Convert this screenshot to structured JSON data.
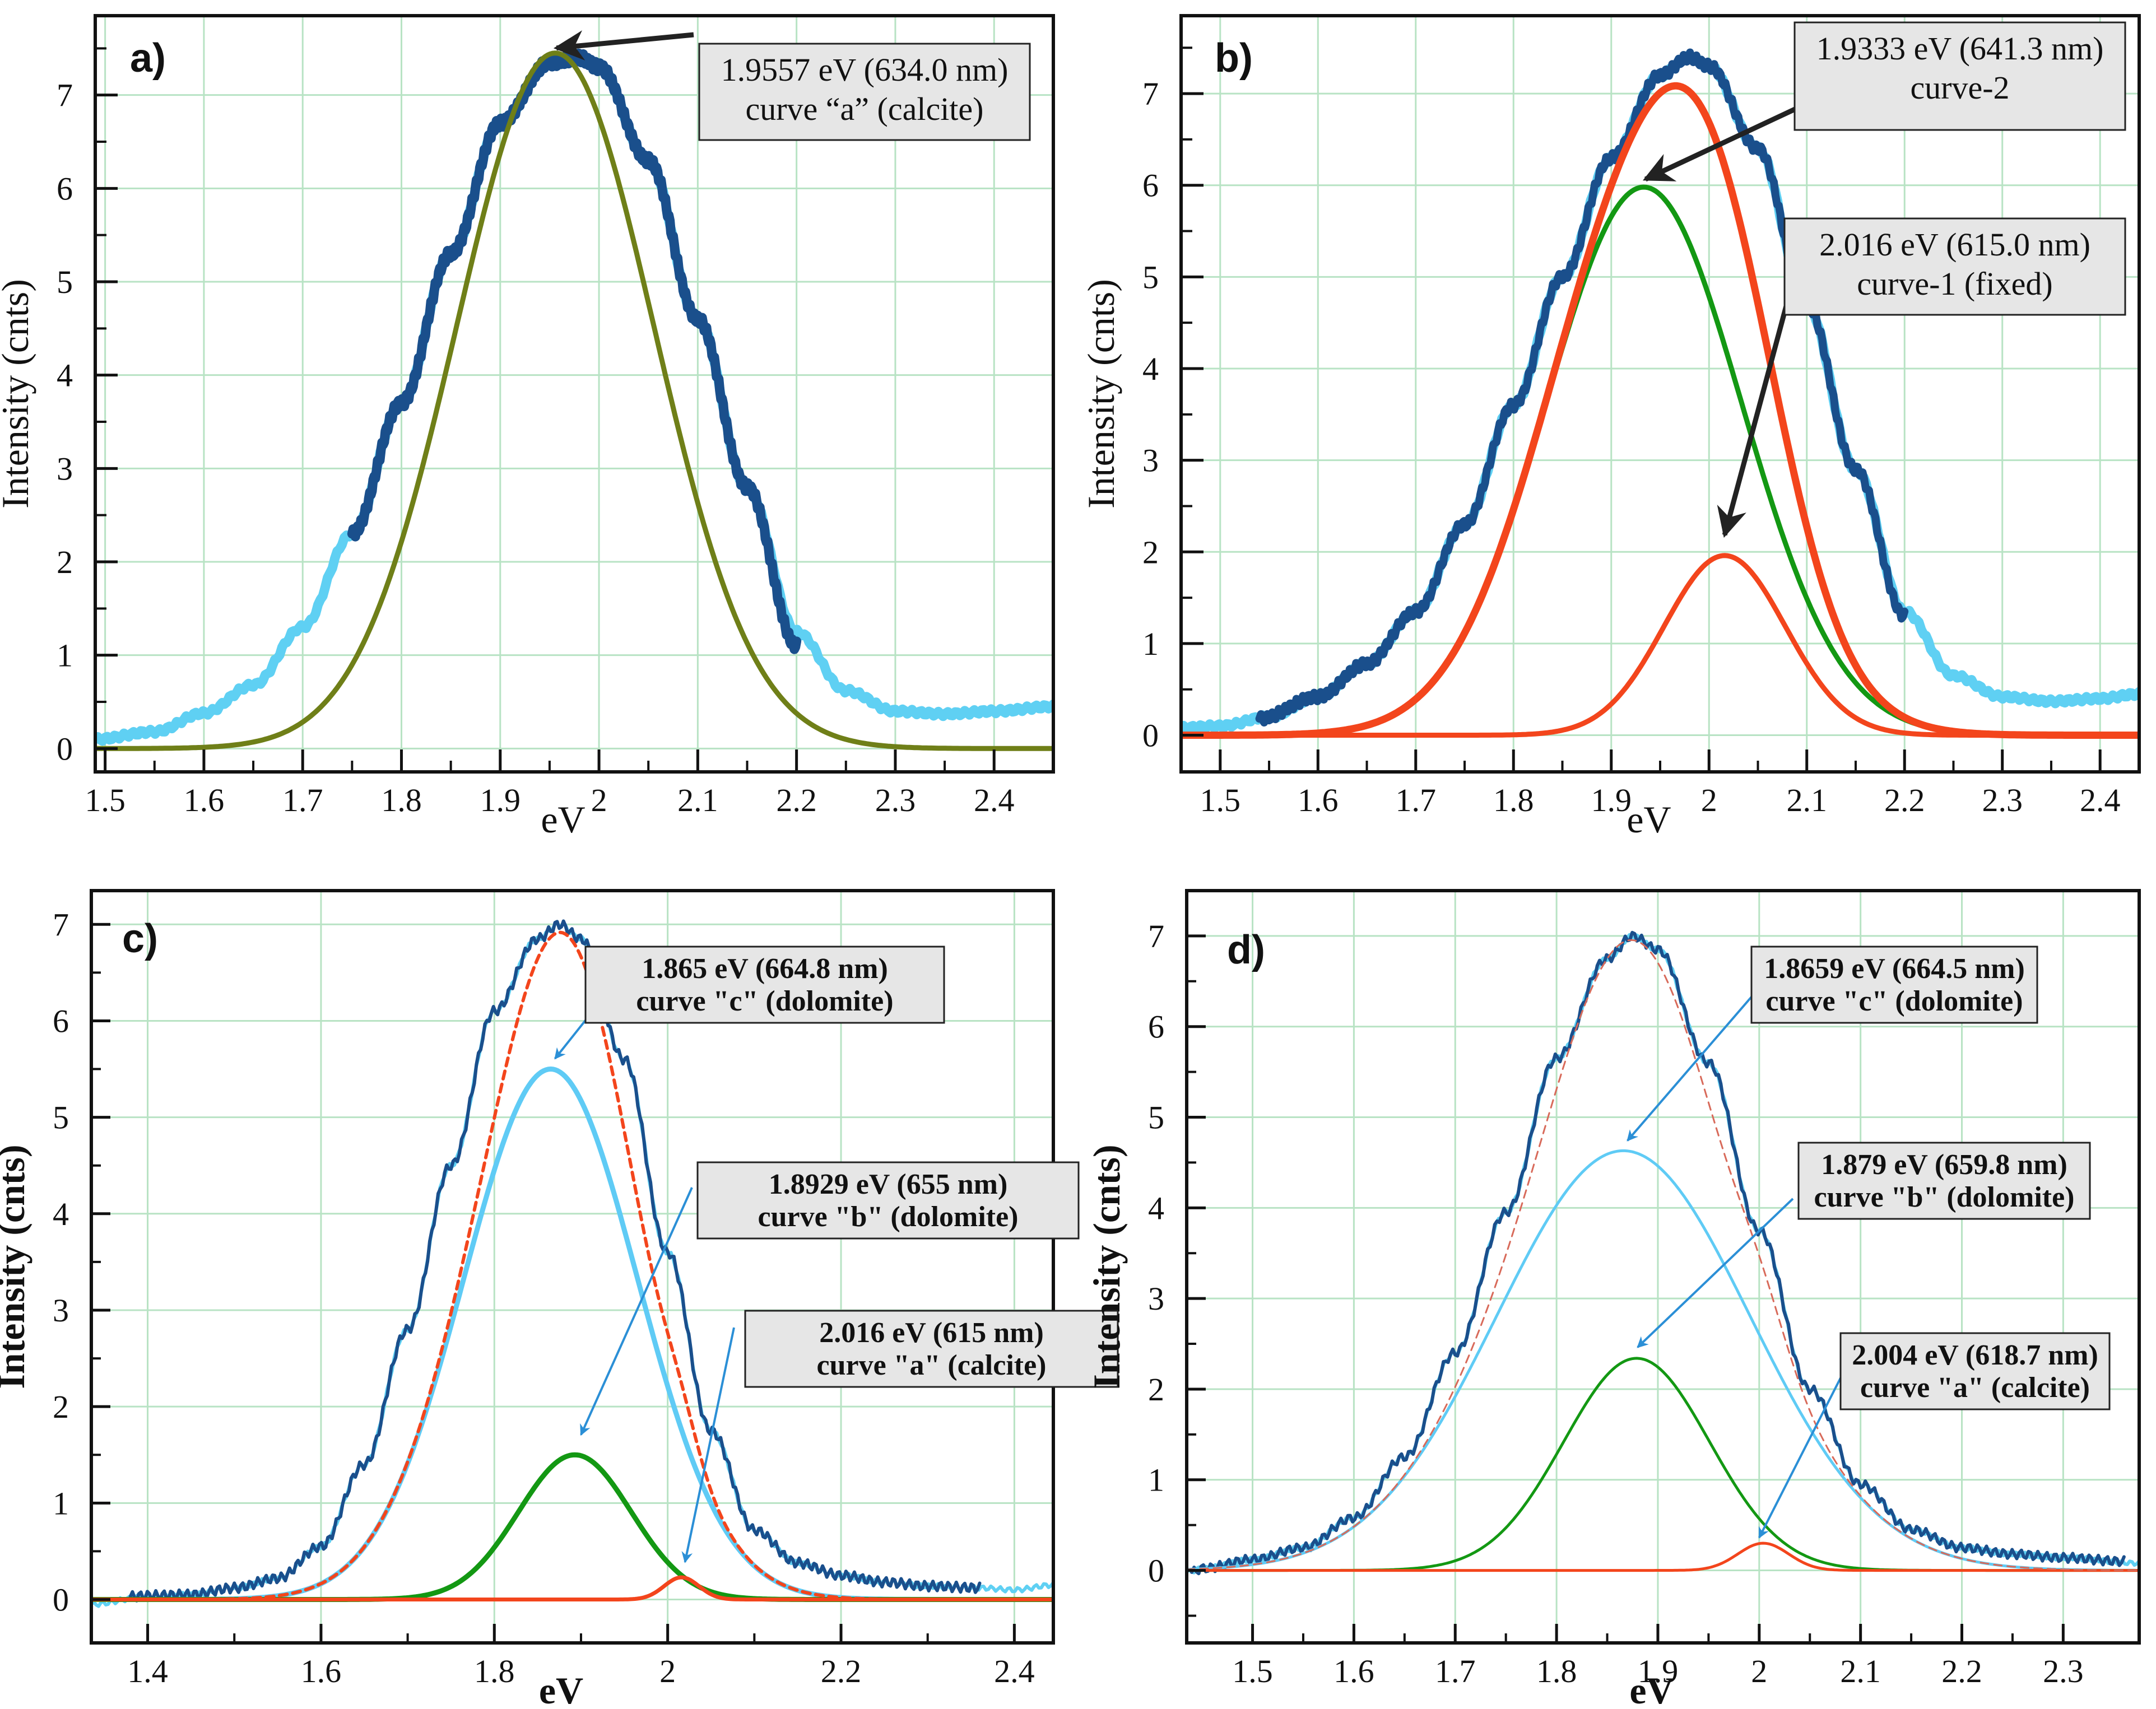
{
  "figure": {
    "colors": {
      "grid": "#b8e3c4",
      "axis": "#111111",
      "background": "#ffffff",
      "annotation_box": "#e6e6e6",
      "arrow_black": "#222222",
      "arrow_blue": "#2b8fd6"
    }
  },
  "chart_data": [
    {
      "panel": "a)",
      "type": "line",
      "xlabel": "eV",
      "ylabel": "Intensity (cnts)",
      "bold_labels": false,
      "xlim": [
        1.49,
        2.46
      ],
      "ylim": [
        -0.25,
        7.85
      ],
      "x_ticks": [
        1.5,
        1.6,
        1.7,
        1.8,
        1.9,
        2.0,
        2.1,
        2.2,
        2.3,
        2.4
      ],
      "x_tick_labels": [
        "1.5",
        "1.6",
        "1.7",
        "1.8",
        "1.9",
        "2",
        "2.1",
        "2.2",
        "2.3",
        "2.4"
      ],
      "y_ticks": [
        0,
        1,
        2,
        3,
        4,
        5,
        6,
        7
      ],
      "y_tick_labels": [
        "0",
        "1",
        "2",
        "3",
        "4",
        "5",
        "6",
        "7"
      ],
      "grid": true,
      "series": [
        {
          "kind": "spectrum",
          "role": "measured-full",
          "color": "#5fd0f3",
          "width": 17,
          "range": [
            1.49,
            2.46
          ],
          "x": [
            1.49,
            1.55,
            1.6,
            1.65,
            1.7,
            1.75,
            1.8,
            1.85,
            1.9,
            1.95,
            1.98,
            2.0,
            2.05,
            2.1,
            2.15,
            2.2,
            2.25,
            2.3,
            2.35,
            2.4,
            2.46
          ],
          "y": [
            0.1,
            0.18,
            0.38,
            0.68,
            1.3,
            2.3,
            3.7,
            5.3,
            6.7,
            7.35,
            7.4,
            7.3,
            6.3,
            4.6,
            2.8,
            1.25,
            0.62,
            0.4,
            0.37,
            0.4,
            0.45
          ]
        },
        {
          "kind": "spectrum",
          "role": "measured-fit-window",
          "color": "#1a4f8c",
          "width": 17,
          "range": [
            1.75,
            2.2
          ],
          "x": [
            1.75,
            1.8,
            1.85,
            1.9,
            1.95,
            1.98,
            2.0,
            2.05,
            2.1,
            2.15,
            2.2
          ],
          "y": [
            2.3,
            3.7,
            5.3,
            6.7,
            7.35,
            7.4,
            7.3,
            6.3,
            4.6,
            2.8,
            1.1
          ]
        },
        {
          "kind": "gauss",
          "role": "fit",
          "color": "#6f7f18",
          "width": 9,
          "center": 1.9557,
          "amplitude": 7.45,
          "sigma": 0.1,
          "range": [
            1.49,
            2.46
          ]
        }
      ],
      "annotations": [
        {
          "lines": [
            "1.9557 eV (634.0 nm)",
            "curve “a” (calcite)"
          ],
          "bold": false,
          "arrow_color": "#222222",
          "points_to": [
            1.957,
            7.42
          ]
        }
      ]
    },
    {
      "panel": "b)",
      "type": "line",
      "xlabel": "eV",
      "ylabel": "Intensity (cnts)",
      "bold_labels": false,
      "xlim": [
        1.46,
        2.44
      ],
      "ylim": [
        -0.4,
        7.85
      ],
      "x_ticks": [
        1.5,
        1.6,
        1.7,
        1.8,
        1.9,
        2.0,
        2.1,
        2.2,
        2.3,
        2.4
      ],
      "x_tick_labels": [
        "1.5",
        "1.6",
        "1.7",
        "1.8",
        "1.9",
        "2",
        "2.1",
        "2.2",
        "2.3",
        "2.4"
      ],
      "y_ticks": [
        0,
        1,
        2,
        3,
        4,
        5,
        6,
        7
      ],
      "y_tick_labels": [
        "0",
        "1",
        "2",
        "3",
        "4",
        "5",
        "6",
        "7"
      ],
      "grid": true,
      "series": [
        {
          "kind": "spectrum",
          "role": "measured-full",
          "color": "#5fd0f3",
          "width": 17,
          "range": [
            1.46,
            2.44
          ],
          "x": [
            1.46,
            1.5,
            1.55,
            1.6,
            1.65,
            1.7,
            1.75,
            1.8,
            1.85,
            1.9,
            1.95,
            1.98,
            2.0,
            2.05,
            2.1,
            2.15,
            2.2,
            2.25,
            2.3,
            2.35,
            2.4,
            2.44
          ],
          "y": [
            0.08,
            0.1,
            0.2,
            0.42,
            0.78,
            1.35,
            2.3,
            3.6,
            5.0,
            6.3,
            7.2,
            7.4,
            7.3,
            6.4,
            4.7,
            2.9,
            1.35,
            0.65,
            0.42,
            0.37,
            0.4,
            0.45
          ]
        },
        {
          "kind": "spectrum",
          "role": "measured-fit-window",
          "color": "#1a4f8c",
          "width": 14,
          "range": [
            1.54,
            2.2
          ],
          "x": [
            1.54,
            1.6,
            1.65,
            1.7,
            1.75,
            1.8,
            1.85,
            1.9,
            1.95,
            1.98,
            2.0,
            2.05,
            2.1,
            2.15,
            2.2
          ],
          "y": [
            0.18,
            0.42,
            0.78,
            1.35,
            2.3,
            3.6,
            5.0,
            6.3,
            7.2,
            7.4,
            7.3,
            6.4,
            4.7,
            2.9,
            1.3
          ]
        },
        {
          "kind": "gauss",
          "role": "curve-2",
          "color": "#139813",
          "width": 9,
          "center": 1.9333,
          "amplitude": 5.98,
          "sigma": 0.1,
          "range": [
            1.46,
            2.44
          ]
        },
        {
          "kind": "gauss",
          "role": "curve-1",
          "color": "#f3451c",
          "width": 9,
          "center": 2.016,
          "amplitude": 1.96,
          "sigma": 0.062,
          "range": [
            1.46,
            2.44
          ]
        },
        {
          "kind": "sum",
          "role": "fit-sum",
          "color": "#f3451c",
          "width": 13,
          "components": [
            2,
            3
          ],
          "range": [
            1.46,
            2.44
          ]
        }
      ],
      "annotations": [
        {
          "lines": [
            "1.9333 eV (641.3 nm)",
            "curve-2"
          ],
          "bold": false,
          "arrow_color": "#222222",
          "points_to": [
            1.935,
            5.98
          ]
        },
        {
          "lines": [
            "2.016 eV (615.0 nm)",
            "curve-1 (fixed)"
          ],
          "bold": false,
          "arrow_color": "#222222",
          "points_to": [
            2.016,
            2.1
          ]
        }
      ]
    },
    {
      "panel": "c)",
      "type": "line",
      "xlabel": "eV",
      "ylabel": "Intensity (cnts)",
      "bold_labels": true,
      "xlim": [
        1.335,
        2.445
      ],
      "ylim": [
        -0.45,
        7.35
      ],
      "x_ticks": [
        1.4,
        1.6,
        1.8,
        2.0,
        2.2,
        2.4
      ],
      "x_tick_labels": [
        "1.4",
        "1.6",
        "1.8",
        "2",
        "2.2",
        "2.4"
      ],
      "y_ticks": [
        0,
        1,
        2,
        3,
        4,
        5,
        6,
        7
      ],
      "y_tick_labels": [
        "0",
        "1",
        "2",
        "3",
        "4",
        "5",
        "6",
        "7"
      ],
      "grid": true,
      "series": [
        {
          "kind": "spectrum",
          "role": "measured-full",
          "color": "#5fd0f3",
          "width": 6,
          "range": [
            1.335,
            2.445
          ],
          "x": [
            1.335,
            1.4,
            1.45,
            1.5,
            1.55,
            1.6,
            1.65,
            1.7,
            1.75,
            1.8,
            1.85,
            1.875,
            1.9,
            1.95,
            2.0,
            2.05,
            2.1,
            2.15,
            2.2,
            2.25,
            2.3,
            2.36,
            2.4,
            2.445
          ],
          "y": [
            -0.05,
            0.03,
            0.05,
            0.12,
            0.22,
            0.55,
            1.4,
            2.8,
            4.5,
            6.1,
            6.85,
            7.0,
            6.85,
            5.6,
            3.6,
            1.75,
            0.72,
            0.38,
            0.25,
            0.18,
            0.14,
            0.12,
            0.1,
            0.15
          ]
        },
        {
          "kind": "spectrum",
          "role": "measured-fit-window",
          "color": "#1a4f8c",
          "width": 6,
          "range": [
            1.38,
            2.36
          ],
          "x": [
            1.38,
            1.4,
            1.45,
            1.5,
            1.55,
            1.6,
            1.65,
            1.7,
            1.75,
            1.8,
            1.85,
            1.875,
            1.9,
            1.95,
            2.0,
            2.05,
            2.1,
            2.15,
            2.2,
            2.25,
            2.3,
            2.36
          ],
          "y": [
            0.03,
            0.04,
            0.05,
            0.12,
            0.22,
            0.55,
            1.4,
            2.8,
            4.5,
            6.1,
            6.85,
            7.0,
            6.85,
            5.6,
            3.6,
            1.75,
            0.72,
            0.38,
            0.25,
            0.18,
            0.14,
            0.12
          ]
        },
        {
          "kind": "gauss",
          "role": "curve-c",
          "color": "#5fcbf5",
          "width": 9,
          "center": 1.865,
          "amplitude": 5.5,
          "sigma": 0.1,
          "range": [
            1.335,
            2.445
          ]
        },
        {
          "kind": "gauss",
          "role": "curve-b",
          "color": "#139813",
          "width": 9,
          "center": 1.8929,
          "amplitude": 1.5,
          "sigma": 0.065,
          "range": [
            1.335,
            2.445
          ]
        },
        {
          "kind": "gauss",
          "role": "curve-a",
          "color": "#f3451c",
          "width": 7,
          "center": 2.016,
          "amplitude": 0.23,
          "sigma": 0.02,
          "range": [
            1.335,
            2.445
          ]
        },
        {
          "kind": "sum",
          "role": "fit-sum",
          "color": "#f3451c",
          "width": 6,
          "dashed": true,
          "components": [
            2,
            3,
            4
          ],
          "range": [
            1.335,
            2.445
          ]
        }
      ],
      "annotations": [
        {
          "lines": [
            "1.865 eV (664.8 nm)",
            "curve \"c\" (dolomite)"
          ],
          "bold": true,
          "arrow_color": "#2b8fd6",
          "points_to": [
            1.87,
            5.55
          ]
        },
        {
          "lines": [
            "1.8929 eV (655 nm)",
            "curve \"b\" (dolomite)"
          ],
          "bold": true,
          "arrow_color": "#2b8fd6",
          "points_to": [
            1.9,
            1.65
          ]
        },
        {
          "lines": [
            "2.016 eV (615 nm)",
            "curve \"a\" (calcite)"
          ],
          "bold": true,
          "arrow_color": "#2b8fd6",
          "points_to": [
            2.02,
            0.33
          ]
        }
      ]
    },
    {
      "panel": "d)",
      "type": "line",
      "xlabel": "eV",
      "ylabel": "Intensity (cnts)",
      "bold_labels": true,
      "xlim": [
        1.435,
        2.375
      ],
      "ylim": [
        -0.8,
        7.5
      ],
      "x_ticks": [
        1.5,
        1.6,
        1.7,
        1.8,
        1.9,
        2.0,
        2.1,
        2.2,
        2.3
      ],
      "x_tick_labels": [
        "1.5",
        "1.6",
        "1.7",
        "1.8",
        "1.9",
        "2",
        "2.1",
        "2.2",
        "2.3"
      ],
      "y_ticks": [
        0,
        1,
        2,
        3,
        4,
        5,
        6,
        7
      ],
      "y_tick_labels": [
        "0",
        "1",
        "2",
        "3",
        "4",
        "5",
        "6",
        "7"
      ],
      "grid": true,
      "series": [
        {
          "kind": "spectrum",
          "role": "measured-full",
          "color": "#5fd0f3",
          "width": 6,
          "range": [
            1.435,
            2.375
          ],
          "x": [
            1.435,
            1.45,
            1.5,
            1.55,
            1.6,
            1.65,
            1.7,
            1.75,
            1.8,
            1.85,
            1.875,
            1.9,
            1.95,
            2.0,
            2.05,
            2.1,
            2.15,
            2.2,
            2.25,
            2.3,
            2.375
          ],
          "y": [
            -0.02,
            0.02,
            0.12,
            0.25,
            0.58,
            1.25,
            2.4,
            3.95,
            5.65,
            6.75,
            7.0,
            6.85,
            5.6,
            3.75,
            2.0,
            0.95,
            0.45,
            0.25,
            0.18,
            0.14,
            0.08
          ]
        },
        {
          "kind": "spectrum",
          "role": "measured-fit-window",
          "color": "#1a4f8c",
          "width": 6,
          "range": [
            1.44,
            2.36
          ],
          "x": [
            1.44,
            1.45,
            1.5,
            1.55,
            1.6,
            1.65,
            1.7,
            1.75,
            1.8,
            1.85,
            1.875,
            1.9,
            1.95,
            2.0,
            2.05,
            2.1,
            2.15,
            2.2,
            2.25,
            2.3,
            2.36
          ],
          "y": [
            -0.02,
            0.02,
            0.12,
            0.25,
            0.58,
            1.25,
            2.4,
            3.95,
            5.65,
            6.75,
            7.0,
            6.85,
            5.6,
            3.75,
            2.0,
            0.95,
            0.45,
            0.25,
            0.18,
            0.14,
            0.1
          ]
        },
        {
          "kind": "gauss",
          "role": "curve-c",
          "color": "#5fcbf5",
          "width": 5,
          "center": 1.8659,
          "amplitude": 4.63,
          "sigma": 0.125,
          "range": [
            1.435,
            2.375
          ]
        },
        {
          "kind": "gauss",
          "role": "curve-b",
          "color": "#139813",
          "width": 5,
          "center": 1.879,
          "amplitude": 2.34,
          "sigma": 0.072,
          "range": [
            1.435,
            2.375
          ]
        },
        {
          "kind": "gauss",
          "role": "curve-a",
          "color": "#f3451c",
          "width": 5,
          "center": 2.004,
          "amplitude": 0.3,
          "sigma": 0.025,
          "range": [
            1.435,
            2.375
          ]
        },
        {
          "kind": "sum",
          "role": "fit-sum",
          "color": "#d86a5a",
          "width": 3,
          "dashed": true,
          "components": [
            2,
            3,
            4
          ],
          "range": [
            1.435,
            2.375
          ]
        }
      ],
      "annotations": [
        {
          "lines": [
            "1.8659 eV (664.5 nm)",
            "curve \"c\" (dolomite)"
          ],
          "bold": true,
          "arrow_color": "#2b8fd6",
          "points_to": [
            1.87,
            4.68
          ]
        },
        {
          "lines": [
            "1.879 eV (659.8 nm)",
            "curve \"b\" (dolomite)"
          ],
          "bold": true,
          "arrow_color": "#2b8fd6",
          "points_to": [
            1.88,
            2.4
          ]
        },
        {
          "lines": [
            "2.004 eV (618.7 nm)",
            "curve \"a\" (calcite)"
          ],
          "bold": true,
          "arrow_color": "#2b8fd6",
          "points_to": [
            2.0,
            0.3
          ]
        }
      ]
    }
  ]
}
